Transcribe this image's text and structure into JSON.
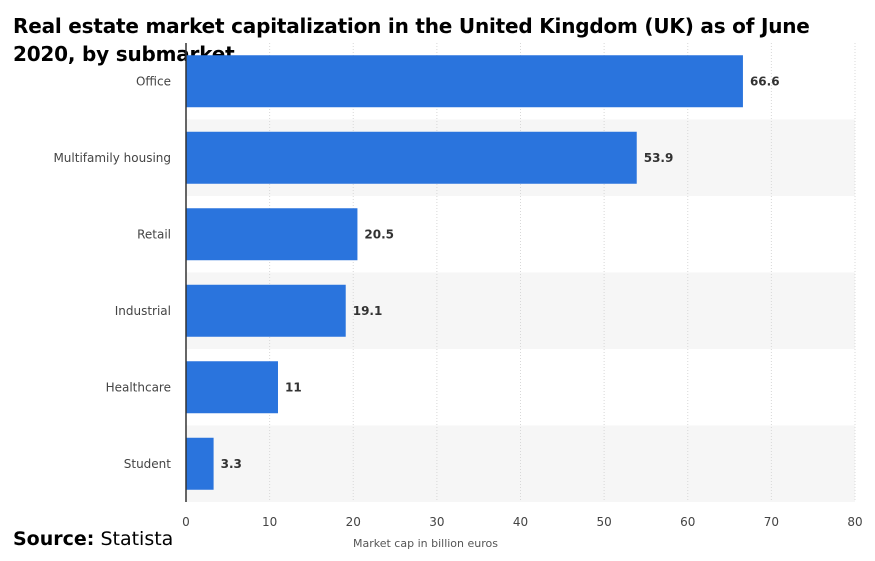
{
  "chart_data": {
    "type": "bar",
    "orientation": "horizontal",
    "title": "Real estate market capitalization in the United Kingdom (UK) as of June 2020, by submarket",
    "categories": [
      "Office",
      "Multifamily housing",
      "Retail",
      "Industrial",
      "Healthcare",
      "Student"
    ],
    "values": [
      66.6,
      53.9,
      20.5,
      19.1,
      11,
      3.3
    ],
    "value_labels": [
      "66.6",
      "53.9",
      "20.5",
      "19.1",
      "11",
      "3.3"
    ],
    "xlabel": "Market cap in billion euros",
    "ylabel": "",
    "xlim": [
      0,
      80
    ],
    "xticks": [
      0,
      10,
      20,
      30,
      40,
      50,
      60,
      70,
      80
    ],
    "bar_color": "#2a74dd",
    "grid": true
  },
  "source": {
    "label": "Source:",
    "name": "Statista"
  }
}
